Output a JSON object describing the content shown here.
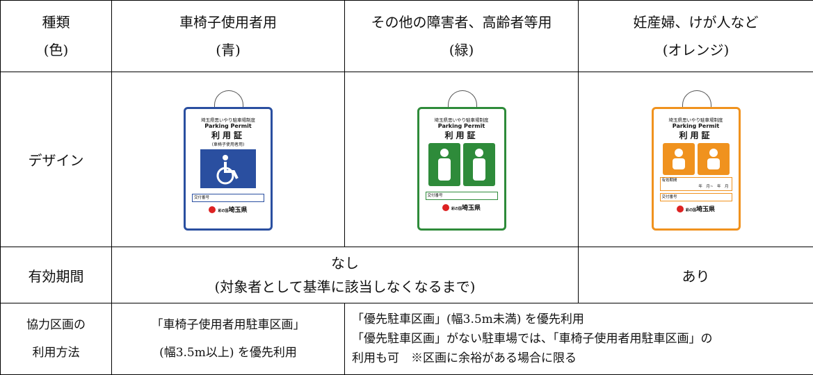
{
  "columns": [
    {
      "label": "種類",
      "sub": "(色)"
    },
    {
      "label": "車椅子使用者用",
      "sub": "(青)"
    },
    {
      "label": "その他の障害者、高齢者等用",
      "sub": "(緑)"
    },
    {
      "label": "妊産婦、けが人など",
      "sub": "(オレンジ)"
    }
  ],
  "design": {
    "label": "デザイン",
    "permits": [
      {
        "color": "#2a4fa0",
        "scheme": "埼玉県思いやり駐車場制度",
        "en": "Parking Permit",
        "name": "利用証",
        "sub": "(車椅子使用者用)",
        "number": "交付番号",
        "brand": "彩の国",
        "pref": "埼玉県"
      },
      {
        "color": "#2e8b3a",
        "scheme": "埼玉県思いやり駐車場制度",
        "en": "Parking Permit",
        "name": "利用証",
        "number": "交付番号",
        "brand": "彩の国",
        "pref": "埼玉県"
      },
      {
        "color": "#f0921e",
        "scheme": "埼玉県思いやり駐車場制度",
        "en": "Parking Permit",
        "name": "利用証",
        "period": "有効期間",
        "period_fill": "年　月~　年　月",
        "number": "交付番号",
        "brand": "彩の国",
        "pref": "埼玉県"
      }
    ]
  },
  "validity": {
    "label": "有効期間",
    "shared": [
      "なし",
      "(対象者として基準に該当しなくなるまで)"
    ],
    "orange": "あり"
  },
  "usage": {
    "label": [
      "協力区画の",
      "利用方法"
    ],
    "blue": [
      "「車椅子使用者用駐車区画」",
      "(幅3.5m以上) を優先利用"
    ],
    "others": [
      "「優先駐車区画」(幅3.5m未満) を優先利用",
      "「優先駐車区画」がない駐車場では、「車椅子使用者用駐車区画」の",
      "利用も可　※区画に余裕がある場合に限る"
    ]
  }
}
